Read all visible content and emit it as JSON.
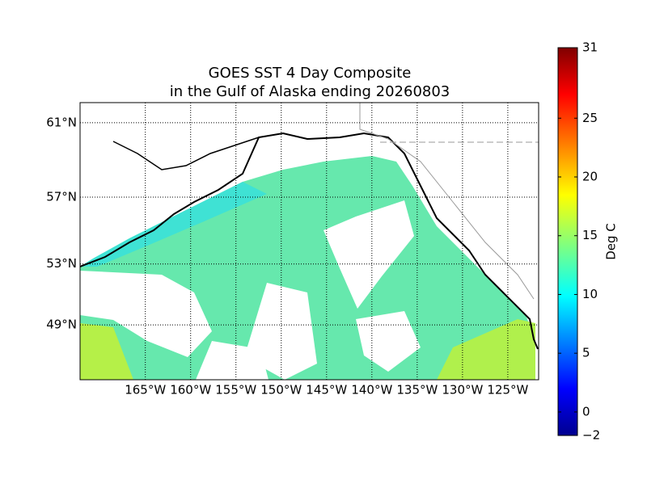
{
  "title": [
    "GOES SST 4 Day Composite",
    "in the Gulf of Alaska ending 20260803"
  ],
  "map": {
    "xlim": [
      -172.2,
      -121.6
    ],
    "ylim": [
      45.1,
      62.0
    ],
    "xticks": [
      {
        "value": -165,
        "label": "165°W"
      },
      {
        "value": -160,
        "label": "160°W"
      },
      {
        "value": -155,
        "label": "155°W"
      },
      {
        "value": -150,
        "label": "150°W"
      },
      {
        "value": -145,
        "label": "145°W"
      },
      {
        "value": -140,
        "label": "140°W"
      },
      {
        "value": -135,
        "label": "135°W"
      },
      {
        "value": -130,
        "label": "130°W"
      },
      {
        "value": -125,
        "label": "125°W"
      }
    ],
    "yticks": [
      {
        "value": 49,
        "label": "49°N"
      },
      {
        "value": 53,
        "label": "53°N"
      },
      {
        "value": 57,
        "label": "57°N"
      },
      {
        "value": 61,
        "label": "61°N"
      }
    ]
  },
  "colorbar": {
    "label": "Deg C",
    "lim": [
      -2,
      31
    ],
    "ticks": [
      {
        "value": -2,
        "label": "−2"
      },
      0,
      5,
      10,
      15,
      20,
      25,
      31
    ]
  }
}
